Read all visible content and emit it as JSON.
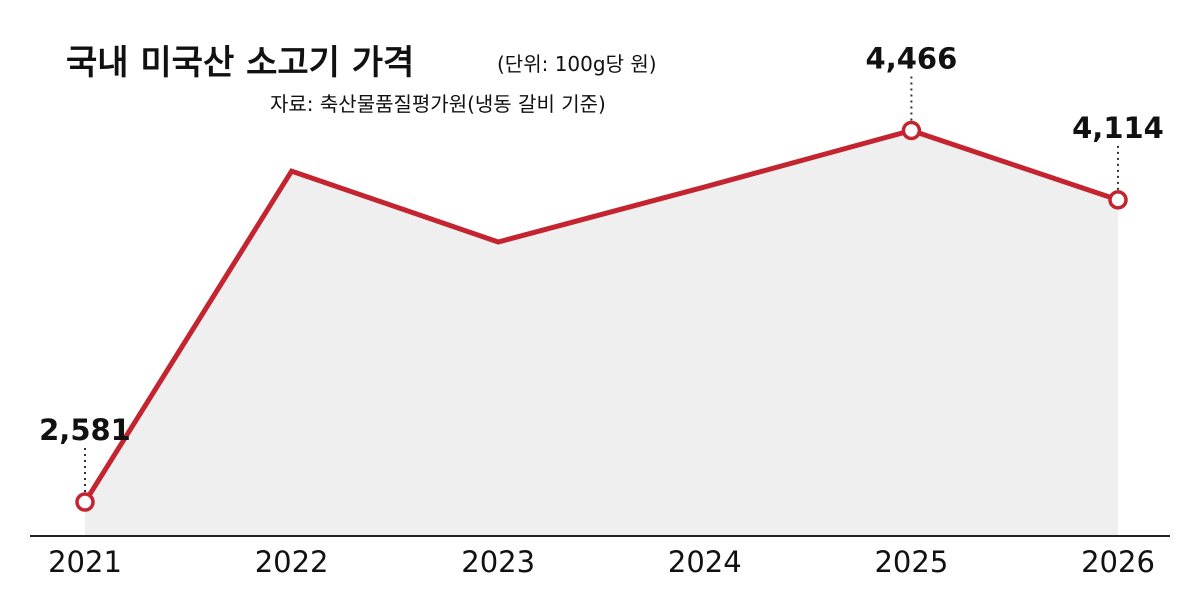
{
  "header": {
    "title": "국내 미국산 소고기 가격",
    "unit": "(단위: 100g당 원)",
    "source": "자료: 축산물품질평가원(냉동 갈비 기준)"
  },
  "colors": {
    "line": "#c4242f",
    "area": "#efefef",
    "axis": "#222222",
    "text": "#111111"
  },
  "chart_data": {
    "type": "area",
    "title": "국내 미국산 소고기 가격",
    "unit": "(단위: 100g당 원)",
    "xlabel": "",
    "ylabel": "",
    "categories": [
      "2021",
      "2022",
      "2023",
      "2024",
      "2025",
      "2026"
    ],
    "values": [
      2581,
      4260,
      3900,
      4180,
      4466,
      4114
    ],
    "labels": [
      "2,581",
      "",
      "",
      "",
      "4,466",
      "4,114"
    ],
    "marked": [
      true,
      false,
      false,
      false,
      true,
      true
    ],
    "ylim": [
      2490,
      4580
    ],
    "grid": false,
    "legend": "none"
  }
}
